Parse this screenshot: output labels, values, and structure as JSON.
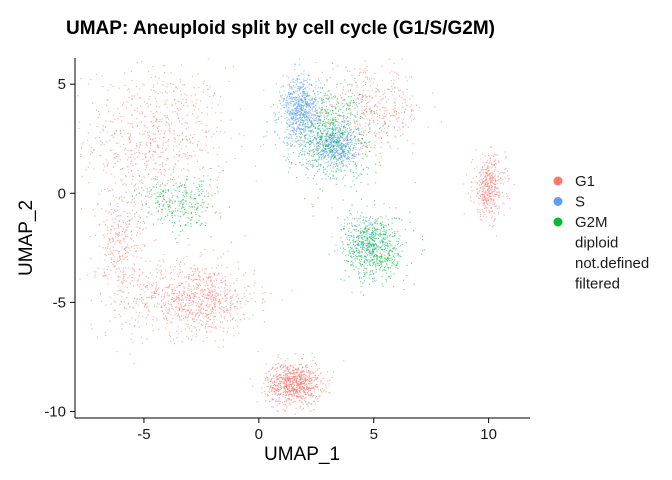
{
  "chart_data": {
    "type": "scatter",
    "title": "UMAP: Aneuploid split by cell cycle (G1/S/G2M)",
    "xlabel": "UMAP_1",
    "ylabel": "UMAP_2",
    "xlim": [
      -8.0,
      11.8
    ],
    "ylim": [
      -10.3,
      6.2
    ],
    "x_ticks": [
      -5,
      0,
      5,
      10
    ],
    "y_ticks": [
      -10,
      -5,
      0,
      5
    ],
    "grid": false,
    "legend_position": "right",
    "legend": [
      {
        "label": "G1",
        "color": "#F8766D",
        "marker": true
      },
      {
        "label": "S",
        "color": "#619CFF",
        "marker": true
      },
      {
        "label": "G2M",
        "color": "#00BA38",
        "marker": true
      },
      {
        "label": "diploid",
        "color": null,
        "marker": false
      },
      {
        "label": "not.defined",
        "color": null,
        "marker": false
      },
      {
        "label": "filtered",
        "color": null,
        "marker": false
      }
    ],
    "series": [
      {
        "name": "G1",
        "color": "#F8766D",
        "regions": [
          {
            "cx": -4.5,
            "cy": 2.5,
            "rx": 2.6,
            "ry": 2.8,
            "density": 1.0
          },
          {
            "cx": -2.8,
            "cy": -4.8,
            "rx": 2.2,
            "ry": 1.4,
            "density": 1.2
          },
          {
            "cx": 1.5,
            "cy": -8.7,
            "rx": 1.0,
            "ry": 0.8,
            "density": 1.2
          },
          {
            "cx": 10.0,
            "cy": 0.3,
            "rx": 0.6,
            "ry": 1.2,
            "density": 0.6
          },
          {
            "cx": 4.8,
            "cy": 3.8,
            "rx": 2.0,
            "ry": 1.6,
            "density": 0.6
          },
          {
            "cx": -6.0,
            "cy": -2.5,
            "rx": 0.9,
            "ry": 2.5,
            "density": 0.5
          }
        ]
      },
      {
        "name": "S",
        "color": "#619CFF",
        "regions": [
          {
            "cx": 1.8,
            "cy": 3.8,
            "rx": 0.7,
            "ry": 1.3,
            "density": 1.0
          },
          {
            "cx": 3.3,
            "cy": 2.2,
            "rx": 0.8,
            "ry": 0.9,
            "density": 0.8
          },
          {
            "cx": 4.7,
            "cy": -2.2,
            "rx": 0.8,
            "ry": 1.2,
            "density": 0.3
          }
        ]
      },
      {
        "name": "G2M",
        "color": "#00BA38",
        "regions": [
          {
            "cx": 3.0,
            "cy": 2.8,
            "rx": 1.6,
            "ry": 1.8,
            "density": 1.0
          },
          {
            "cx": 5.0,
            "cy": -2.5,
            "rx": 1.1,
            "ry": 1.3,
            "density": 0.9
          },
          {
            "cx": -3.5,
            "cy": -0.5,
            "rx": 1.4,
            "ry": 1.0,
            "density": 0.4
          }
        ]
      }
    ]
  }
}
